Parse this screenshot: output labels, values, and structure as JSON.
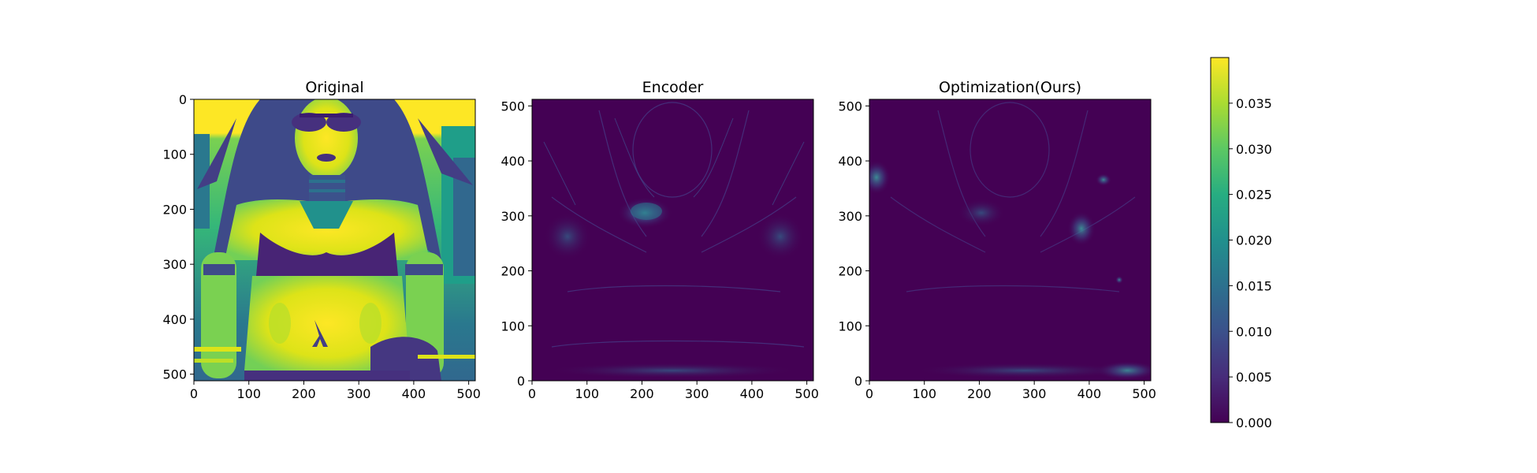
{
  "chart_data": [
    {
      "type": "heatmap",
      "title": "Original",
      "xticks": [
        0,
        100,
        200,
        300,
        400,
        500
      ],
      "yticks": [
        0,
        100,
        200,
        300,
        400,
        500
      ],
      "y_axis_direction": "down",
      "xlim": [
        0,
        512
      ],
      "ylim": [
        512,
        0
      ],
      "colormap": "viridis",
      "content": "image"
    },
    {
      "type": "heatmap",
      "title": "Encoder",
      "xticks": [
        0,
        100,
        200,
        300,
        400,
        500
      ],
      "yticks": [
        0,
        100,
        200,
        300,
        400,
        500
      ],
      "y_axis_direction": "up",
      "xlim": [
        0,
        512
      ],
      "ylim": [
        0,
        512
      ],
      "colormap": "viridis",
      "content": "error-map"
    },
    {
      "type": "heatmap",
      "title": "Optimization(Ours)",
      "xticks": [
        0,
        100,
        200,
        300,
        400,
        500
      ],
      "yticks": [
        0,
        100,
        200,
        300,
        400,
        500
      ],
      "y_axis_direction": "up",
      "xlim": [
        0,
        512
      ],
      "ylim": [
        0,
        512
      ],
      "colormap": "viridis",
      "content": "error-map"
    }
  ],
  "colorbar": {
    "min": 0.0,
    "max": 0.04,
    "ticks": [
      "0.000",
      "0.005",
      "0.010",
      "0.015",
      "0.020",
      "0.025",
      "0.030",
      "0.035"
    ],
    "colors": [
      "#440154",
      "#472c7a",
      "#3b518b",
      "#2c718e",
      "#21908d",
      "#27ad81",
      "#5cc863",
      "#aadc32",
      "#fde725"
    ]
  }
}
